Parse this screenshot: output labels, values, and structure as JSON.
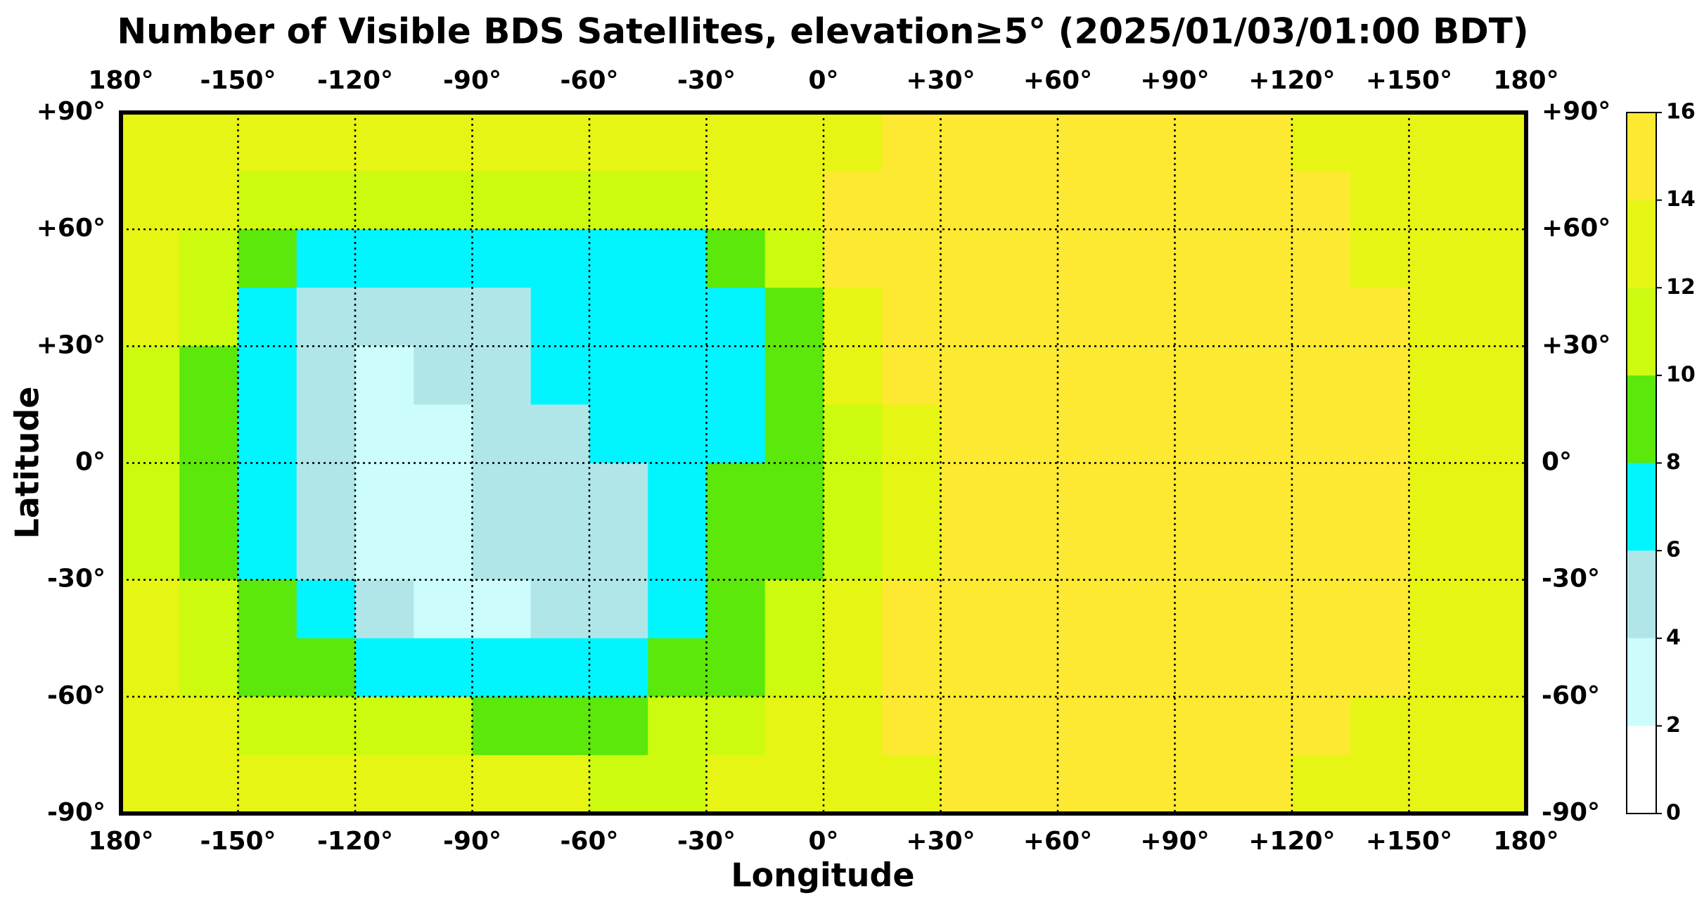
{
  "chart_data": {
    "type": "heatmap",
    "title": "Number of Visible BDS Satellites, elevation≥5° (2025/01/03/01:00 BDT)",
    "xlabel": "Longitude",
    "ylabel": "Latitude",
    "x": [
      -172.5,
      -157.5,
      -142.5,
      -127.5,
      -112.5,
      -97.5,
      -82.5,
      -67.5,
      -52.5,
      -37.5,
      -22.5,
      -7.5,
      7.5,
      22.5,
      37.5,
      52.5,
      67.5,
      82.5,
      97.5,
      112.5,
      127.5,
      142.5,
      157.5,
      172.5
    ],
    "y": [
      82.5,
      67.5,
      52.5,
      37.5,
      22.5,
      7.5,
      -7.5,
      -22.5,
      -37.5,
      -52.5,
      -67.5,
      -82.5
    ],
    "z": [
      [
        12,
        12,
        12,
        12,
        12,
        12,
        12,
        12,
        12,
        12,
        13,
        13,
        13,
        14,
        14,
        14,
        14,
        14,
        14,
        14,
        13,
        13,
        12,
        12
      ],
      [
        13,
        12,
        11,
        11,
        11,
        11,
        11,
        11,
        11,
        11,
        12,
        13,
        14,
        14,
        14,
        14,
        14,
        14,
        14,
        14,
        14,
        13,
        13,
        13
      ],
      [
        12,
        11,
        9,
        7,
        7,
        7,
        7,
        7,
        7,
        7,
        9,
        11,
        14,
        14,
        14,
        15,
        15,
        15,
        14,
        14,
        14,
        13,
        13,
        13
      ],
      [
        12,
        10,
        7,
        5,
        5,
        5,
        5,
        7,
        7,
        7,
        7,
        9,
        12,
        14,
        15,
        15,
        15,
        15,
        15,
        14,
        14,
        14,
        13,
        13
      ],
      [
        11,
        9,
        7,
        5,
        3,
        5,
        5,
        7,
        7,
        7,
        7,
        9,
        12,
        14,
        15,
        15,
        15,
        15,
        15,
        14,
        14,
        14,
        13,
        12
      ],
      [
        11,
        9,
        7,
        5,
        3,
        3,
        5,
        5,
        7,
        7,
        7,
        9,
        11,
        13,
        14,
        15,
        15,
        15,
        15,
        14,
        14,
        14,
        13,
        12
      ],
      [
        11,
        9,
        7,
        5,
        3,
        3,
        5,
        5,
        5,
        7,
        9,
        9,
        11,
        13,
        14,
        15,
        15,
        15,
        15,
        14,
        14,
        14,
        13,
        12
      ],
      [
        11,
        9,
        7,
        5,
        3,
        3,
        5,
        5,
        5,
        7,
        9,
        9,
        11,
        13,
        14,
        15,
        15,
        15,
        15,
        15,
        14,
        14,
        13,
        12
      ],
      [
        12,
        10,
        9,
        7,
        5,
        3,
        3,
        5,
        5,
        7,
        9,
        11,
        12,
        14,
        14,
        15,
        15,
        15,
        15,
        15,
        14,
        14,
        13,
        12
      ],
      [
        12,
        11,
        9,
        9,
        7,
        7,
        7,
        7,
        7,
        9,
        9,
        11,
        12,
        14,
        14,
        15,
        15,
        15,
        15,
        15,
        14,
        14,
        13,
        12
      ],
      [
        13,
        12,
        11,
        11,
        11,
        11,
        9,
        9,
        9,
        11,
        11,
        12,
        13,
        14,
        14,
        14,
        14,
        14,
        14,
        14,
        14,
        13,
        13,
        13
      ],
      [
        12,
        12,
        12,
        12,
        12,
        12,
        12,
        12,
        11,
        11,
        12,
        12,
        13,
        13,
        14,
        14,
        14,
        14,
        14,
        14,
        13,
        13,
        12,
        12
      ]
    ],
    "xlim": [
      -180,
      180
    ],
    "ylim": [
      -90,
      90
    ],
    "xticks": [
      {
        "value": -180,
        "label": "180°"
      },
      {
        "value": -150,
        "label": "-150°"
      },
      {
        "value": -120,
        "label": "-120°"
      },
      {
        "value": -90,
        "label": "-90°"
      },
      {
        "value": -60,
        "label": "-60°"
      },
      {
        "value": -30,
        "label": "-30°"
      },
      {
        "value": 0,
        "label": "0°"
      },
      {
        "value": 30,
        "label": "+30°"
      },
      {
        "value": 60,
        "label": "+60°"
      },
      {
        "value": 90,
        "label": "+90°"
      },
      {
        "value": 120,
        "label": "+120°"
      },
      {
        "value": 150,
        "label": "+150°"
      },
      {
        "value": 180,
        "label": "180°"
      }
    ],
    "yticks": [
      {
        "value": 90,
        "label": "+90°"
      },
      {
        "value": 60,
        "label": "+60°"
      },
      {
        "value": 30,
        "label": "+30°"
      },
      {
        "value": 0,
        "label": "0°"
      },
      {
        "value": -30,
        "label": "-30°"
      },
      {
        "value": -60,
        "label": "-60°"
      },
      {
        "value": -90,
        "label": "-90°"
      }
    ],
    "grid": true,
    "colorbar": {
      "lim": [
        0,
        16
      ],
      "ticks": [
        0,
        2,
        4,
        6,
        8,
        10,
        12,
        14,
        16
      ],
      "colors": [
        "#ffffff",
        "#ccfcfc",
        "#b0e6e8",
        "#00f5ff",
        "#5be80a",
        "#ccfb10",
        "#e6f514",
        "#fde932"
      ]
    }
  }
}
